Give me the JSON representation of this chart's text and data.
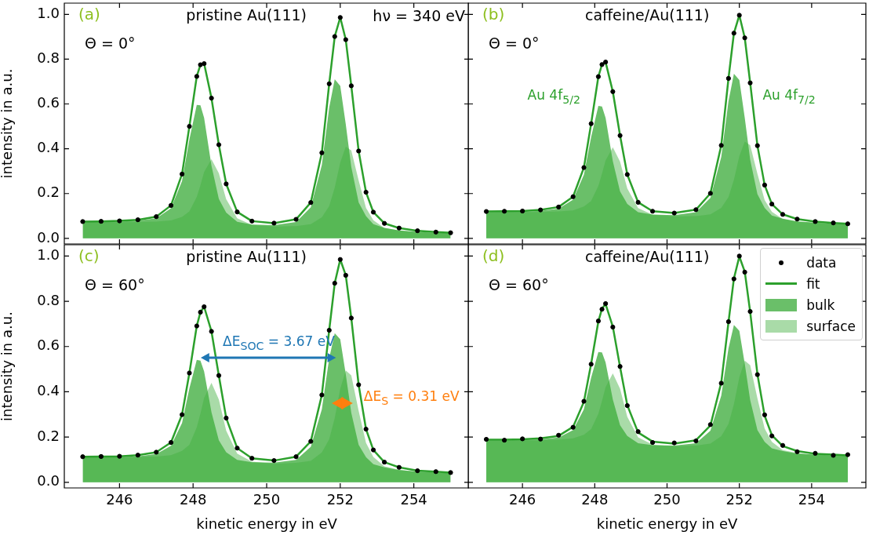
{
  "chart_data": [
    {
      "type": "line",
      "title": "(a)",
      "subtitle": "pristine Au(111)",
      "ylabel": "intensity in a.u.",
      "annotations": [
        "Θ = 0°",
        "hν = 340 eV"
      ],
      "x": [
        245,
        245.5,
        246,
        246.5,
        247,
        247.4,
        247.7,
        247.9,
        248.1,
        248.2,
        248.3,
        248.5,
        248.7,
        248.9,
        249.2,
        249.6,
        250.2,
        250.8,
        251.2,
        251.5,
        251.7,
        251.85,
        252,
        252.15,
        252.3,
        252.5,
        252.7,
        252.9,
        253.2,
        253.6,
        254.1,
        254.6,
        255
      ],
      "xlim": [
        244.5,
        255.5
      ],
      "xticks": [
        {
          "value": 246,
          "label": null
        },
        {
          "value": 248,
          "label": null
        },
        {
          "value": 250,
          "label": null
        },
        {
          "value": 252,
          "label": null
        },
        {
          "value": 254,
          "label": null
        }
      ],
      "ylim": [
        -0.025,
        1.05
      ],
      "yticks": [
        {
          "value": 0,
          "label": "0.0"
        },
        {
          "value": 0.2,
          "label": "0.2"
        },
        {
          "value": 0.4,
          "label": "0.4"
        },
        {
          "value": 0.6,
          "label": "0.6"
        },
        {
          "value": 0.8,
          "label": "0.8"
        },
        {
          "value": 1,
          "label": "1.0"
        }
      ],
      "tick_labels": "y",
      "series": [
        {
          "type": "scatter",
          "marker": "circle",
          "color": "#000000",
          "values": [
            0.075,
            0.076,
            0.078,
            0.083,
            0.097,
            0.147,
            0.287,
            0.5,
            0.723,
            0.775,
            0.78,
            0.626,
            0.418,
            0.243,
            0.118,
            0.077,
            0.068,
            0.085,
            0.16,
            0.382,
            0.69,
            0.901,
            0.986,
            0.887,
            0.681,
            0.39,
            0.206,
            0.117,
            0.067,
            0.046,
            0.034,
            0.028,
            0.025
          ]
        },
        {
          "type": "line",
          "color": "#2ca02c",
          "values": [
            0.075,
            0.076,
            0.078,
            0.083,
            0.097,
            0.147,
            0.287,
            0.5,
            0.723,
            0.775,
            0.78,
            0.626,
            0.418,
            0.243,
            0.118,
            0.077,
            0.068,
            0.085,
            0.16,
            0.382,
            0.69,
            0.901,
            0.986,
            0.887,
            0.681,
            0.39,
            0.206,
            0.117,
            0.067,
            0.046,
            0.034,
            0.028,
            0.025
          ]
        },
        {
          "type": "area",
          "color": "#6abf69",
          "values": [
            0.073,
            0.074,
            0.075,
            0.079,
            0.09,
            0.134,
            0.256,
            0.442,
            0.596,
            0.594,
            0.538,
            0.324,
            0.176,
            0.115,
            0.074,
            0.062,
            0.059,
            0.073,
            0.139,
            0.328,
            0.583,
            0.71,
            0.681,
            0.51,
            0.319,
            0.161,
            0.099,
            0.063,
            0.047,
            0.035,
            0.029,
            0.025,
            0.023
          ]
        },
        {
          "type": "area",
          "color": "#a9dba8",
          "values": [
            0.072,
            0.072,
            0.072,
            0.073,
            0.075,
            0.08,
            0.096,
            0.12,
            0.185,
            0.237,
            0.296,
            0.353,
            0.291,
            0.175,
            0.09,
            0.06,
            0.053,
            0.055,
            0.063,
            0.094,
            0.144,
            0.226,
            0.338,
            0.409,
            0.393,
            0.259,
            0.136,
            0.081,
            0.046,
            0.035,
            0.027,
            0.024,
            0.022
          ]
        }
      ]
    },
    {
      "type": "line",
      "title": "(b)",
      "subtitle": "caffeine/Au(111)",
      "annotations": [
        "Θ = 0°",
        "Au 4f$_{5/2}$",
        "Au 4f$_{7/2}$"
      ],
      "x": [
        245,
        245.5,
        246,
        246.5,
        247,
        247.4,
        247.7,
        247.9,
        248.1,
        248.2,
        248.3,
        248.5,
        248.7,
        248.9,
        249.2,
        249.6,
        250.2,
        250.8,
        251.2,
        251.5,
        251.7,
        251.85,
        252,
        252.15,
        252.3,
        252.5,
        252.7,
        252.9,
        253.2,
        253.6,
        254.1,
        254.6,
        255
      ],
      "xlim": [
        244.5,
        255.5
      ],
      "xticks": [
        {
          "value": 246,
          "label": null
        },
        {
          "value": 248,
          "label": null
        },
        {
          "value": 250,
          "label": null
        },
        {
          "value": 252,
          "label": null
        },
        {
          "value": 254,
          "label": null
        }
      ],
      "ylim": [
        -0.025,
        1.05
      ],
      "yticks": [
        {
          "value": 0,
          "label": null
        },
        {
          "value": 0.2,
          "label": null
        },
        {
          "value": 0.4,
          "label": null
        },
        {
          "value": 0.6,
          "label": null
        },
        {
          "value": 0.8,
          "label": null
        },
        {
          "value": 1,
          "label": null
        }
      ],
      "tick_labels": false,
      "series": [
        {
          "type": "scatter",
          "marker": "circle",
          "color": "#000000",
          "values": [
            0.12,
            0.121,
            0.122,
            0.127,
            0.14,
            0.186,
            0.316,
            0.512,
            0.722,
            0.776,
            0.787,
            0.655,
            0.459,
            0.285,
            0.161,
            0.121,
            0.113,
            0.128,
            0.201,
            0.415,
            0.714,
            0.916,
            0.996,
            0.895,
            0.694,
            0.414,
            0.238,
            0.153,
            0.107,
            0.086,
            0.075,
            0.069,
            0.065
          ]
        },
        {
          "type": "line",
          "color": "#2ca02c",
          "values": [
            0.12,
            0.121,
            0.122,
            0.127,
            0.14,
            0.186,
            0.316,
            0.512,
            0.722,
            0.776,
            0.787,
            0.655,
            0.459,
            0.285,
            0.161,
            0.121,
            0.113,
            0.128,
            0.201,
            0.415,
            0.714,
            0.916,
            0.996,
            0.895,
            0.694,
            0.414,
            0.238,
            0.153,
            0.107,
            0.086,
            0.075,
            0.069,
            0.065
          ]
        },
        {
          "type": "area",
          "color": "#6abf69",
          "values": [
            0.118,
            0.119,
            0.119,
            0.123,
            0.133,
            0.173,
            0.284,
            0.452,
            0.591,
            0.589,
            0.538,
            0.344,
            0.21,
            0.154,
            0.117,
            0.106,
            0.104,
            0.117,
            0.181,
            0.364,
            0.612,
            0.735,
            0.707,
            0.538,
            0.351,
            0.197,
            0.136,
            0.102,
            0.088,
            0.076,
            0.07,
            0.066,
            0.063
          ]
        },
        {
          "type": "area",
          "color": "#a9dba8",
          "values": [
            0.117,
            0.117,
            0.117,
            0.118,
            0.12,
            0.125,
            0.142,
            0.167,
            0.234,
            0.288,
            0.348,
            0.407,
            0.343,
            0.223,
            0.135,
            0.105,
            0.098,
            0.099,
            0.107,
            0.136,
            0.184,
            0.261,
            0.367,
            0.432,
            0.416,
            0.288,
            0.171,
            0.119,
            0.086,
            0.075,
            0.068,
            0.065,
            0.062
          ]
        }
      ]
    },
    {
      "type": "line",
      "title": "(c)",
      "subtitle": "pristine Au(111)",
      "xlabel": "kinetic energy in eV",
      "ylabel": "intensity in a.u.",
      "annotations": [
        "Θ = 60°",
        {
          "text": "ΔE$_{SOC}$ = 3.67 eV",
          "x": 248.2,
          "y": 0.55
        },
        "ΔE$_{S}$ = 0.31 eV"
      ],
      "x": [
        245,
        245.5,
        246,
        246.5,
        247,
        247.4,
        247.7,
        247.9,
        248.1,
        248.2,
        248.3,
        248.5,
        248.7,
        248.9,
        249.2,
        249.6,
        250.2,
        250.8,
        251.2,
        251.5,
        251.7,
        251.85,
        252,
        252.15,
        252.3,
        252.5,
        252.7,
        252.9,
        253.2,
        253.6,
        254.1,
        254.6,
        255
      ],
      "xlim": [
        244.5,
        255.5
      ],
      "xticks": [
        246,
        248,
        250,
        252,
        254
      ],
      "ylim": [
        -0.025,
        1.05
      ],
      "yticks": [
        {
          "value": 0,
          "label": "0.0"
        },
        {
          "value": 0.2,
          "label": "0.2"
        },
        {
          "value": 0.4,
          "label": "0.4"
        },
        {
          "value": 0.6,
          "label": "0.6"
        },
        {
          "value": 0.8,
          "label": "0.8"
        },
        {
          "value": 1,
          "label": "1.0"
        }
      ],
      "series": [
        {
          "type": "scatter",
          "marker": "circle",
          "color": "#000000",
          "values": [
            0.113,
            0.114,
            0.115,
            0.12,
            0.133,
            0.176,
            0.299,
            0.483,
            0.691,
            0.752,
            0.776,
            0.667,
            0.472,
            0.284,
            0.151,
            0.106,
            0.096,
            0.113,
            0.181,
            0.386,
            0.672,
            0.88,
            0.985,
            0.915,
            0.726,
            0.431,
            0.235,
            0.143,
            0.089,
            0.066,
            0.051,
            0.047,
            0.043
          ]
        },
        {
          "type": "line",
          "color": "#2ca02c",
          "values": [
            0.113,
            0.114,
            0.115,
            0.12,
            0.133,
            0.176,
            0.299,
            0.483,
            0.691,
            0.752,
            0.776,
            0.667,
            0.472,
            0.284,
            0.151,
            0.106,
            0.096,
            0.113,
            0.181,
            0.386,
            0.672,
            0.88,
            0.985,
            0.915,
            0.726,
            0.431,
            0.235,
            0.143,
            0.089,
            0.066,
            0.051,
            0.047,
            0.043
          ]
        },
        {
          "type": "area",
          "color": "#6abf69",
          "values": [
            0.111,
            0.112,
            0.112,
            0.115,
            0.125,
            0.161,
            0.262,
            0.415,
            0.541,
            0.538,
            0.49,
            0.31,
            0.186,
            0.133,
            0.099,
            0.089,
            0.087,
            0.099,
            0.157,
            0.323,
            0.548,
            0.659,
            0.632,
            0.478,
            0.307,
            0.166,
            0.111,
            0.08,
            0.066,
            0.054,
            0.047,
            0.044,
            0.04
          ]
        },
        {
          "type": "area",
          "color": "#a9dba8",
          "values": [
            0.11,
            0.11,
            0.11,
            0.112,
            0.114,
            0.12,
            0.139,
            0.166,
            0.243,
            0.304,
            0.373,
            0.44,
            0.366,
            0.228,
            0.127,
            0.091,
            0.082,
            0.086,
            0.095,
            0.132,
            0.19,
            0.284,
            0.413,
            0.494,
            0.473,
            0.316,
            0.174,
            0.112,
            0.07,
            0.056,
            0.046,
            0.043,
            0.041
          ]
        }
      ]
    },
    {
      "type": "line",
      "title": "(d)",
      "subtitle": "caffeine/Au(111)",
      "xlabel": "kinetic energy in eV",
      "annotations": [
        "Θ = 60°"
      ],
      "legend": "top right",
      "x": [
        245,
        245.5,
        246,
        246.5,
        247,
        247.4,
        247.7,
        247.9,
        248.1,
        248.2,
        248.3,
        248.5,
        248.7,
        248.9,
        249.2,
        249.6,
        250.2,
        250.8,
        251.2,
        251.5,
        251.7,
        251.85,
        252,
        252.15,
        252.3,
        252.5,
        252.7,
        252.9,
        253.2,
        253.6,
        254.1,
        254.6,
        255
      ],
      "xlim": [
        244.5,
        255.5
      ],
      "xticks": [
        246,
        248,
        250,
        252,
        254
      ],
      "ylim": [
        -0.025,
        1.05
      ],
      "yticks": [
        {
          "value": 0,
          "label": null
        },
        {
          "value": 0.2,
          "label": null
        },
        {
          "value": 0.4,
          "label": null
        },
        {
          "value": 0.6,
          "label": null
        },
        {
          "value": 0.8,
          "label": null
        },
        {
          "value": 1,
          "label": null
        }
      ],
      "tick_labels": "x",
      "series": [
        {
          "type": "scatter",
          "name": "data",
          "marker": "circle",
          "color": "#000000",
          "values": [
            0.19,
            0.186,
            0.192,
            0.191,
            0.208,
            0.243,
            0.358,
            0.522,
            0.713,
            0.765,
            0.79,
            0.686,
            0.512,
            0.339,
            0.224,
            0.176,
            0.174,
            0.183,
            0.255,
            0.438,
            0.71,
            0.899,
            1.0,
            0.929,
            0.755,
            0.476,
            0.298,
            0.205,
            0.163,
            0.135,
            0.128,
            0.119,
            0.122
          ]
        },
        {
          "type": "line",
          "name": "fit",
          "color": "#2ca02c",
          "values": [
            0.188,
            0.188,
            0.19,
            0.194,
            0.205,
            0.245,
            0.356,
            0.524,
            0.711,
            0.767,
            0.788,
            0.688,
            0.51,
            0.341,
            0.22,
            0.18,
            0.171,
            0.186,
            0.251,
            0.441,
            0.708,
            0.901,
            0.998,
            0.931,
            0.753,
            0.478,
            0.294,
            0.208,
            0.16,
            0.138,
            0.126,
            0.122,
            0.119
          ]
        },
        {
          "type": "area",
          "name": "bulk",
          "color": "#6abf69",
          "values": [
            0.186,
            0.186,
            0.187,
            0.19,
            0.198,
            0.231,
            0.323,
            0.462,
            0.576,
            0.574,
            0.53,
            0.366,
            0.252,
            0.205,
            0.173,
            0.164,
            0.162,
            0.173,
            0.228,
            0.383,
            0.592,
            0.695,
            0.669,
            0.524,
            0.363,
            0.231,
            0.179,
            0.15,
            0.138,
            0.127,
            0.122,
            0.119,
            0.117
          ]
        },
        {
          "type": "area",
          "name": "surface",
          "color": "#a9dba8",
          "values": [
            0.185,
            0.185,
            0.185,
            0.186,
            0.188,
            0.194,
            0.21,
            0.235,
            0.303,
            0.359,
            0.421,
            0.481,
            0.414,
            0.29,
            0.199,
            0.167,
            0.159,
            0.162,
            0.171,
            0.204,
            0.258,
            0.345,
            0.464,
            0.538,
            0.518,
            0.371,
            0.238,
            0.179,
            0.142,
            0.129,
            0.121,
            0.119,
            0.117
          ]
        }
      ]
    }
  ]
}
